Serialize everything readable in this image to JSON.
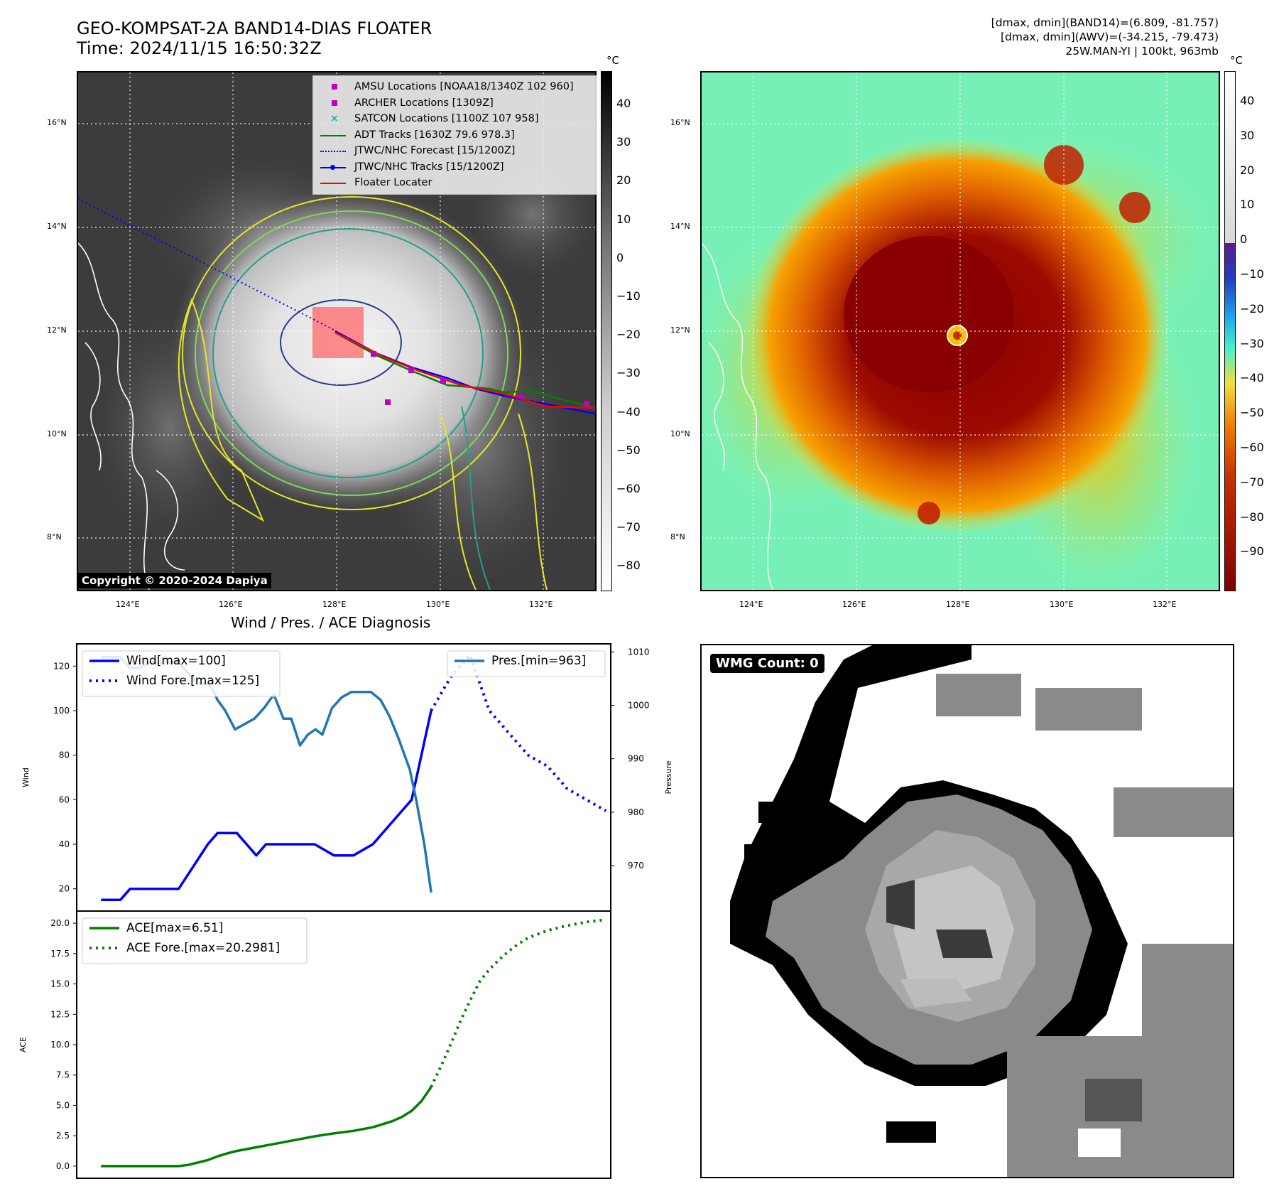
{
  "header": {
    "title_line1": "GEO-KOMPSAT-2A BAND14-DIAS FLOATER",
    "title_line2": "Time: 2024/11/15 16:50:32Z",
    "info_line1": "[dmax, dmin](BAND14)=(6.809, -81.757)",
    "info_line2": "[dmax, dmin](AWV)=(-34.215, -79.473)",
    "info_line3": "25W.MAN-YI | 100kt, 963mb"
  },
  "map_axes": {
    "lon_ticks": [
      "124°E",
      "126°E",
      "128°E",
      "130°E",
      "132°E"
    ],
    "lat_ticks": [
      "16°N",
      "14°N",
      "12°N",
      "10°N",
      "8°N"
    ],
    "unit": "°C"
  },
  "colorbar_left": {
    "labels": [
      "40",
      "30",
      "20",
      "10",
      "0",
      "−10",
      "−20",
      "−30",
      "−40",
      "−50",
      "−60",
      "−70",
      "−80"
    ]
  },
  "colorbar_right": {
    "labels": [
      "40",
      "30",
      "20",
      "10",
      "0",
      "−10",
      "−20",
      "−30",
      "−40",
      "−50",
      "−60",
      "−70",
      "−80",
      "−90"
    ]
  },
  "legend_map": [
    {
      "label": "AMSU Locations [NOAA18/1340Z 102 960]",
      "symbol": "square",
      "color": "#c000c0"
    },
    {
      "label": "ARCHER Locations [1309Z]",
      "symbol": "square",
      "color": "#c000c0"
    },
    {
      "label": "SATCON Locations [1100Z 107 958]",
      "symbol": "x",
      "color": "#20b0b0"
    },
    {
      "label": "ADT Tracks [1630Z 79.6 978.3]",
      "symbol": "line",
      "color": "#008000"
    },
    {
      "label": "JTWC/NHC Forecast [15/1200Z]",
      "symbol": "dotted",
      "color": "#0000ff"
    },
    {
      "label": "JTWC/NHC Tracks [15/1200Z]",
      "symbol": "linedot",
      "color": "#0000ff"
    },
    {
      "label": "Floater Locater",
      "symbol": "line",
      "color": "#ff0000"
    }
  ],
  "copyright": "Copyright © 2020-2024 Dapiya",
  "wmg": "WMG Count: 0",
  "diagnosis_title": "Wind / Pres. / ACE Diagnosis",
  "chart_data": [
    {
      "type": "line",
      "title": "Wind / Pres. / ACE Diagnosis",
      "ylabel": "Wind",
      "ylabel2": "Pressure",
      "ylim": [
        10,
        130
      ],
      "y2lim": [
        961.5,
        1011.5
      ],
      "xlim": [
        -2.5,
        52.5
      ],
      "yticks": [
        "20",
        "40",
        "60",
        "80",
        "100",
        "120"
      ],
      "y2ticks": [
        "970",
        "980",
        "990",
        "1000",
        "1010"
      ],
      "legend_left": [
        "Wind[max=100]",
        "Wind Fore.[max=125]"
      ],
      "legend_right": [
        "Pres.[min=963]"
      ],
      "series": [
        {
          "name": "Wind[max=100]",
          "color": "#0000ff",
          "style": "solid",
          "x": [
            0,
            2,
            3,
            5,
            8,
            11,
            12,
            14,
            16,
            17,
            19,
            21,
            22,
            24,
            26,
            28,
            32,
            34
          ],
          "y": [
            15,
            15,
            20,
            20,
            20,
            40,
            45,
            45,
            35,
            40,
            40,
            40,
            40,
            35,
            35,
            40,
            60,
            100
          ]
        },
        {
          "name": "Wind Fore.[max=125]",
          "color": "#0000ff",
          "style": "dotted",
          "x": [
            34,
            36,
            38,
            40,
            42,
            44,
            46,
            48,
            50,
            52
          ],
          "y": [
            100,
            115,
            125,
            100,
            90,
            80,
            75,
            65,
            60,
            55
          ]
        },
        {
          "name": "Pres.[min=963]",
          "color": "#1f77b4",
          "style": "solid",
          "axis": "right",
          "x": [
            0,
            2,
            3,
            4,
            5,
            6,
            8,
            9,
            10,
            11,
            11.5,
            12,
            12.8,
            13.8,
            14.8,
            15.8,
            16.8,
            17.8,
            18.8,
            19.6,
            20.5,
            21.3,
            22.1,
            22.8,
            23.8,
            24.8,
            25.8,
            26.8,
            27.8,
            28.8,
            29.7,
            30.6,
            31.8,
            32.5,
            33.3,
            34
          ],
          "y": [
            1009,
            1009,
            1007,
            1007,
            1008,
            1008,
            1008,
            1006,
            1004,
            1004,
            1003,
            1001,
            999,
            995.5,
            996.5,
            997.5,
            999.5,
            1002,
            997.5,
            997.5,
            992.5,
            994.5,
            995.5,
            994.5,
            999.5,
            1001.5,
            1002.5,
            1002.5,
            1002.5,
            1001,
            998,
            994,
            988,
            982,
            974,
            965
          ]
        }
      ]
    },
    {
      "type": "line",
      "ylabel": "ACE",
      "ylim": [
        -1,
        21
      ],
      "xlim": [
        -2.5,
        52.5
      ],
      "yticks": [
        "0.0",
        "2.5",
        "5.0",
        "7.5",
        "10.0",
        "12.5",
        "15.0",
        "17.5",
        "20.0"
      ],
      "legend": [
        "ACE[max=6.51]",
        "ACE Fore.[max=20.2981]"
      ],
      "series": [
        {
          "name": "ACE[max=6.51]",
          "color": "#008000",
          "style": "solid",
          "x": [
            0,
            2,
            4,
            6,
            8,
            9,
            10,
            11,
            12,
            13,
            14,
            15,
            16,
            18,
            20,
            22,
            24,
            26,
            28,
            29,
            30,
            31,
            32,
            33,
            34
          ],
          "y": [
            0,
            0,
            0,
            0,
            0,
            0.1,
            0.3,
            0.5,
            0.8,
            1.05,
            1.25,
            1.4,
            1.55,
            1.85,
            2.15,
            2.45,
            2.7,
            2.9,
            3.2,
            3.45,
            3.7,
            4.05,
            4.55,
            5.35,
            6.51
          ]
        },
        {
          "name": "ACE Fore.[max=20.2981]",
          "color": "#008000",
          "style": "dotted",
          "x": [
            34,
            35,
            36,
            37,
            38,
            39,
            40,
            41,
            42,
            43,
            44,
            46,
            48,
            50,
            52
          ],
          "y": [
            6.51,
            8.2,
            10,
            11.9,
            13.6,
            15.2,
            16.2,
            17.0,
            17.7,
            18.3,
            18.8,
            19.4,
            19.8,
            20.1,
            20.3
          ]
        }
      ]
    }
  ]
}
